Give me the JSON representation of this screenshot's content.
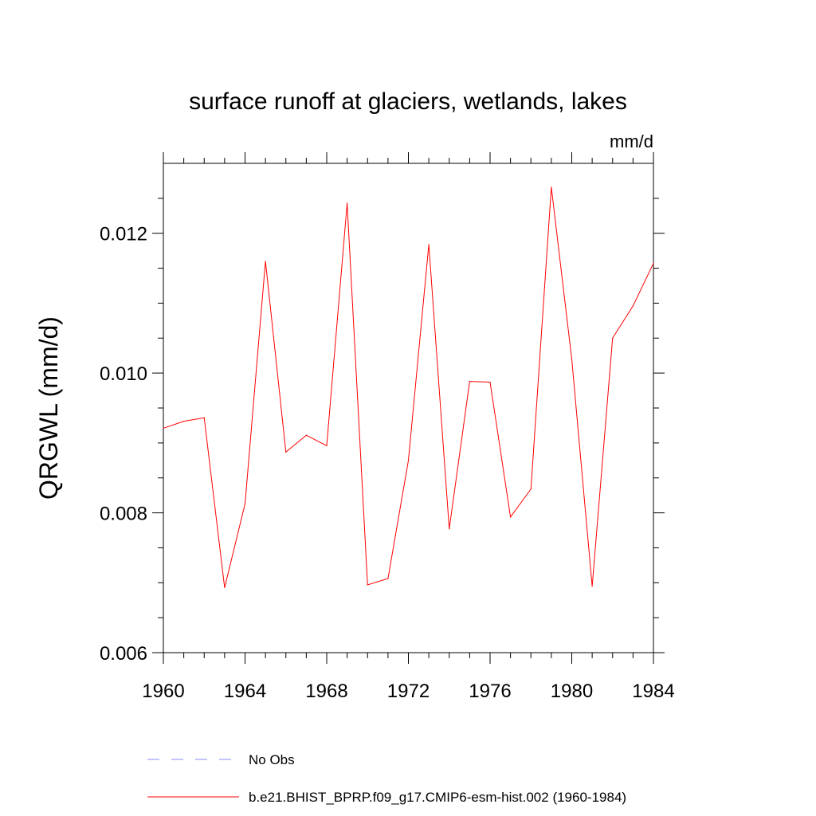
{
  "chart_data": {
    "type": "line",
    "title": "surface runoff at glaciers, wetlands, lakes",
    "units": "mm/d",
    "ylabel": "QRGWL  (mm/d)",
    "xlabel": "",
    "xlim": [
      1960,
      1984
    ],
    "ylim": [
      0.006,
      0.013
    ],
    "x_ticks": [
      1960,
      1964,
      1968,
      1972,
      1976,
      1980,
      1984
    ],
    "x_tick_labels": [
      "1960",
      "1964",
      "1968",
      "1972",
      "1976",
      "1980",
      "1984"
    ],
    "y_ticks": [
      0.006,
      0.008,
      0.01,
      0.012
    ],
    "y_tick_labels": [
      "0.006",
      "0.008",
      "0.010",
      "0.012"
    ],
    "grid": false,
    "legend_position": "bottom",
    "series": [
      {
        "name": "b.e21.BHIST_BPRP.f09_g17.CMIP6-esm-hist.002 (1960-1984)",
        "color": "#ff0000",
        "style": "solid",
        "x": [
          1960,
          1961,
          1962,
          1963,
          1964,
          1965,
          1966,
          1967,
          1968,
          1969,
          1970,
          1971,
          1972,
          1973,
          1974,
          1975,
          1976,
          1977,
          1978,
          1979,
          1980,
          1981,
          1982,
          1983,
          1984
        ],
        "y": [
          0.00921,
          0.00931,
          0.00936,
          0.00693,
          0.00813,
          0.0116,
          0.00887,
          0.00911,
          0.00896,
          0.01243,
          0.00697,
          0.00706,
          0.00875,
          0.01184,
          0.00777,
          0.00988,
          0.00987,
          0.00794,
          0.00834,
          0.01266,
          0.0102,
          0.00695,
          0.0105,
          0.01096,
          0.01157
        ]
      }
    ],
    "legend": [
      {
        "label": "No Obs",
        "color": "#8888ff",
        "style": "dashed"
      },
      {
        "label": "b.e21.BHIST_BPRP.f09_g17.CMIP6-esm-hist.002 (1960-1984)",
        "color": "#ff0000",
        "style": "solid"
      }
    ]
  }
}
